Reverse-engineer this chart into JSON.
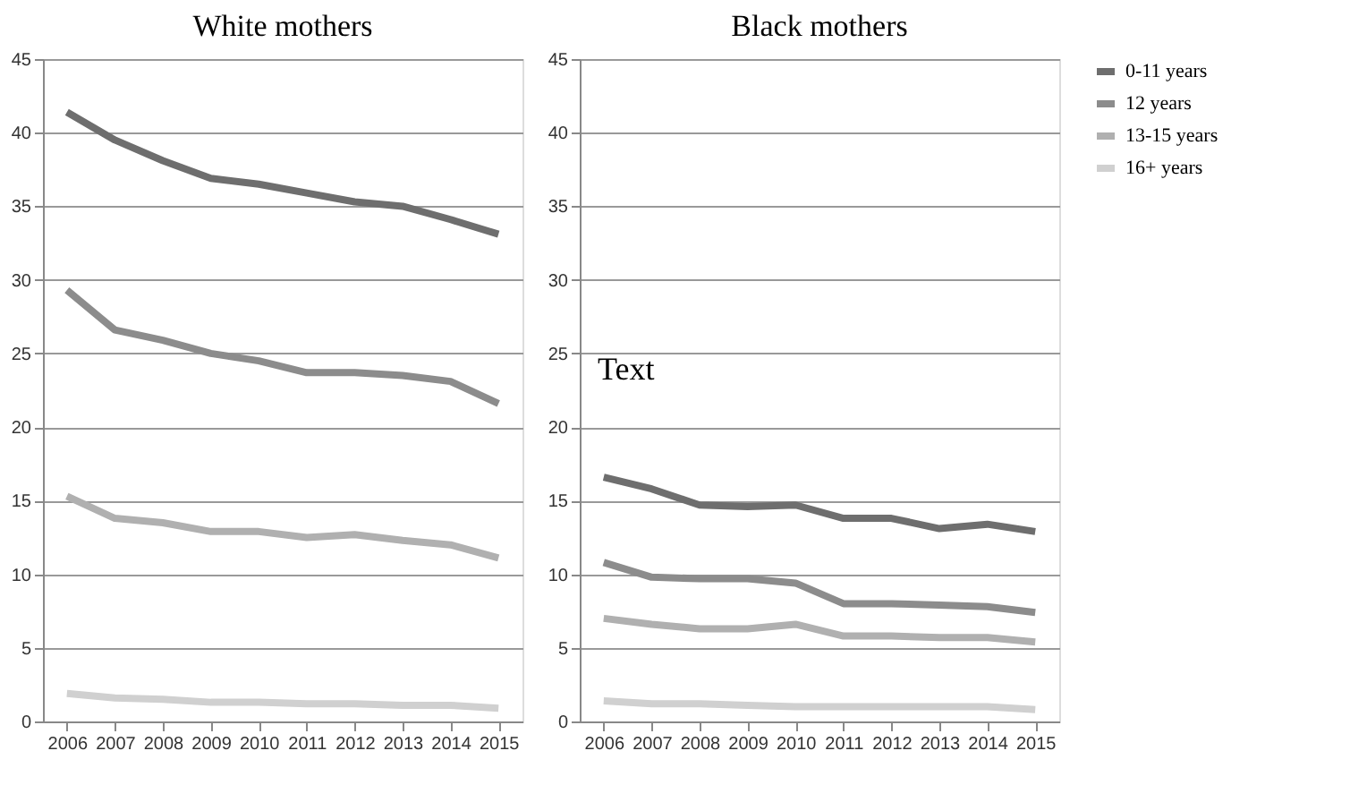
{
  "chart_data": [
    {
      "type": "line",
      "title": "White mothers",
      "categories": [
        "2006",
        "2007",
        "2008",
        "2009",
        "2010",
        "2011",
        "2012",
        "2013",
        "2014",
        "2015"
      ],
      "ylim": [
        0,
        45
      ],
      "yticks": [
        0,
        5,
        10,
        15,
        20,
        25,
        30,
        35,
        40,
        45
      ],
      "grid": "y",
      "legend": "right",
      "line_style": "solid",
      "marker": "none",
      "series": [
        {
          "name": "0-11 years",
          "color": "#6e6e6e",
          "values": [
            41.4,
            39.5,
            38.1,
            36.9,
            36.5,
            35.9,
            35.3,
            35.0,
            34.1,
            33.1
          ]
        },
        {
          "name": "12 years",
          "color": "#8c8c8c",
          "values": [
            29.3,
            26.6,
            25.9,
            25.0,
            24.5,
            23.7,
            23.7,
            23.5,
            23.1,
            21.6
          ]
        },
        {
          "name": "13-15 years",
          "color": "#b0b0b0",
          "values": [
            15.3,
            13.8,
            13.5,
            12.9,
            12.9,
            12.5,
            12.7,
            12.3,
            12.0,
            11.1
          ]
        },
        {
          "name": "16+ years",
          "color": "#d0d0d0",
          "values": [
            1.9,
            1.6,
            1.5,
            1.3,
            1.3,
            1.2,
            1.2,
            1.1,
            1.1,
            0.9
          ]
        }
      ]
    },
    {
      "type": "line",
      "title": "Black mothers",
      "categories": [
        "2006",
        "2007",
        "2008",
        "2009",
        "2010",
        "2011",
        "2012",
        "2013",
        "2014",
        "2015"
      ],
      "ylim": [
        0,
        45
      ],
      "yticks": [
        0,
        5,
        10,
        15,
        20,
        25,
        30,
        35,
        40,
        45
      ],
      "grid": "y",
      "legend": "right",
      "line_style": "solid",
      "marker": "none",
      "annotations": [
        "Text"
      ],
      "series": [
        {
          "name": "0-11 years",
          "color": "#6e6e6e",
          "values": [
            16.6,
            15.8,
            14.7,
            14.6,
            14.7,
            13.8,
            13.8,
            13.1,
            13.4,
            12.9
          ]
        },
        {
          "name": "12 years",
          "color": "#8c8c8c",
          "values": [
            10.8,
            9.8,
            9.7,
            9.7,
            9.4,
            8.0,
            8.0,
            7.9,
            7.8,
            7.4
          ]
        },
        {
          "name": "13-15 years",
          "color": "#b0b0b0",
          "values": [
            7.0,
            6.6,
            6.3,
            6.3,
            6.6,
            5.8,
            5.8,
            5.7,
            5.7,
            5.4
          ]
        },
        {
          "name": "16+ years",
          "color": "#d0d0d0",
          "values": [
            1.4,
            1.2,
            1.2,
            1.1,
            1.0,
            1.0,
            1.0,
            1.0,
            1.0,
            0.8
          ]
        }
      ]
    }
  ]
}
